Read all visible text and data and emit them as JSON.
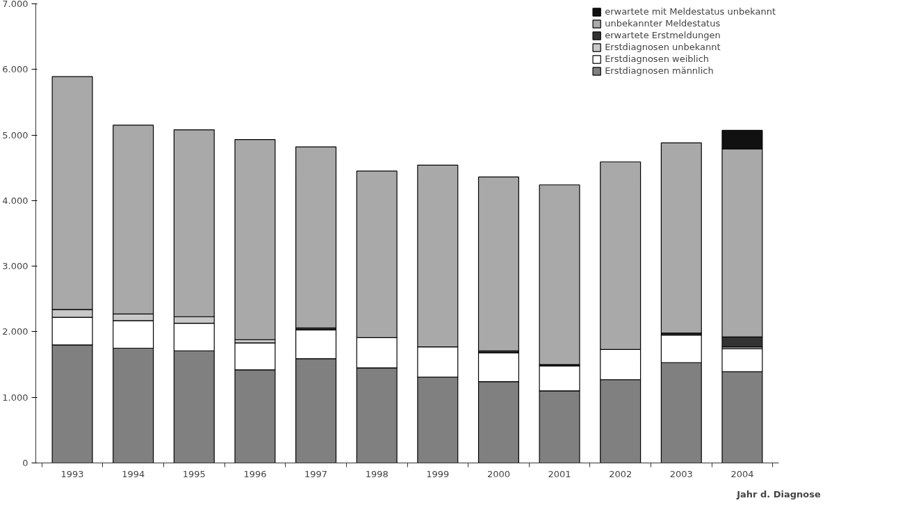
{
  "chart_data": {
    "type": "bar",
    "stacked": true,
    "xlabel": "Jahr d. Diagnose",
    "categories": [
      "1993",
      "1994",
      "1995",
      "1996",
      "1997",
      "1998",
      "1999",
      "2000",
      "2001",
      "2002",
      "2003",
      "2004"
    ],
    "series": [
      {
        "name": "Erstdiagnosen männlich",
        "color": "#808080",
        "values": [
          1800,
          1750,
          1710,
          1420,
          1590,
          1450,
          1310,
          1240,
          1100,
          1270,
          1530,
          1390
        ]
      },
      {
        "name": "Erstdiagnosen weiblich",
        "color": "#ffffff",
        "values": [
          420,
          420,
          420,
          410,
          440,
          460,
          460,
          440,
          380,
          460,
          420,
          350
        ]
      },
      {
        "name": "Erstdiagnosen unbekannt",
        "color": "#c8c8c8",
        "values": [
          120,
          100,
          100,
          50,
          0,
          0,
          0,
          0,
          0,
          0,
          0,
          30
        ]
      },
      {
        "name": "erwartete Erstmeldungen",
        "color": "#333333",
        "values": [
          0,
          0,
          0,
          0,
          30,
          0,
          0,
          30,
          20,
          0,
          30,
          150
        ]
      },
      {
        "name": "unbekannter Meldestatus",
        "color": "#a9a9a9",
        "values": [
          3550,
          2880,
          2850,
          3050,
          2760,
          2540,
          2770,
          2650,
          2740,
          2860,
          2900,
          2870
        ]
      },
      {
        "name": "erwartete mit Meldestatus unbekannt",
        "color": "#111111",
        "values": [
          0,
          0,
          0,
          0,
          0,
          0,
          0,
          0,
          0,
          0,
          0,
          280
        ]
      }
    ],
    "ylim": [
      0,
      7000
    ],
    "yticks": [
      0,
      {
        "value": 1000,
        "label": "1.000"
      },
      {
        "value": 2000,
        "label": "2.000"
      },
      {
        "value": 3000,
        "label": "3.000"
      },
      {
        "value": 4000,
        "label": "4.000"
      },
      {
        "value": 5000,
        "label": "5.000"
      },
      {
        "value": 6000,
        "label": "6.000"
      },
      {
        "value": 7000,
        "label": "7.000"
      }
    ],
    "grid": false,
    "legend": "top right"
  }
}
